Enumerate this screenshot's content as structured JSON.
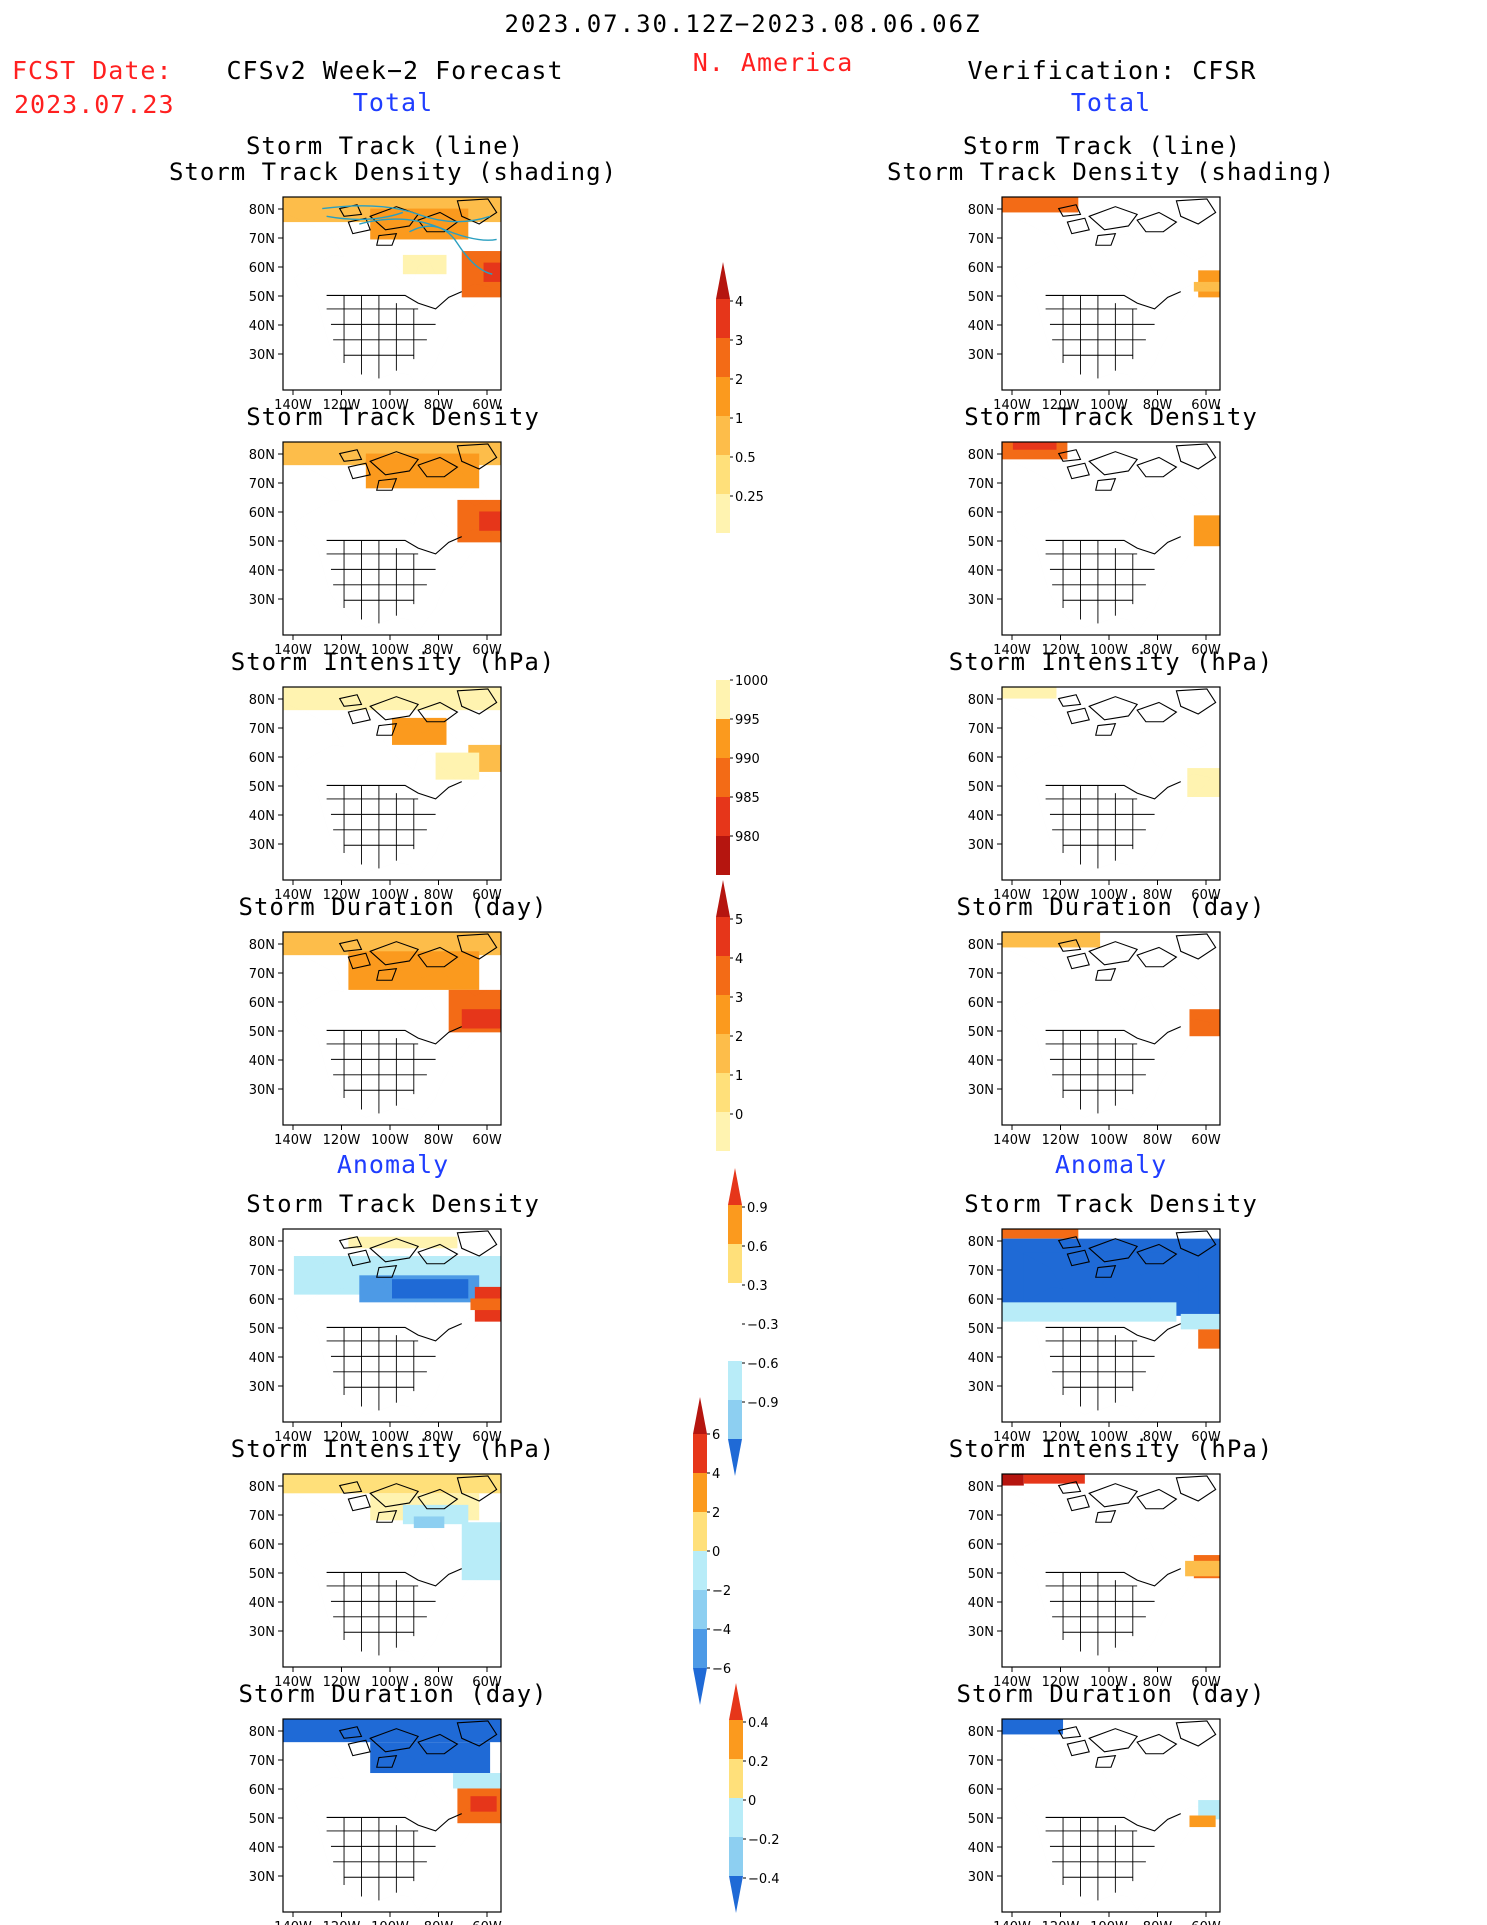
{
  "header": {
    "valid_period": "2023.07.30.12Z−2023.08.06.06Z",
    "region": "N. America",
    "fcst_label": "FCST Date:",
    "fcst_date": "2023.07.23",
    "left_title": "CFSv2 Week−2 Forecast",
    "right_title": "Verification: CFSR",
    "total_label": "Total",
    "anomaly_label": "Anomaly"
  },
  "panel_titles": {
    "track_line": "Storm Track (line)",
    "track_shading": "Storm Track Density (shading)",
    "density": "Storm Track Density",
    "intensity": "Storm Intensity (hPa)",
    "duration": "Storm Duration (day)"
  },
  "map_axes": {
    "lat_labels": [
      "80N",
      "70N",
      "60N",
      "50N",
      "40N",
      "30N"
    ],
    "lon_labels": [
      "140W",
      "120W",
      "100W",
      "80W",
      "60W"
    ]
  },
  "colorbars": {
    "density_total": [
      "4",
      "3",
      "2",
      "1",
      "0.5",
      "0.25"
    ],
    "intensity_total": [
      "1000",
      "995",
      "990",
      "985",
      "980"
    ],
    "duration_total": [
      "5",
      "4",
      "3",
      "2",
      "1",
      "0"
    ],
    "density_anom": [
      "0.9",
      "0.6",
      "0.3",
      "−0.3",
      "−0.6",
      "−0.9"
    ],
    "intensity_anom": [
      "6",
      "4",
      "2",
      "0",
      "−2",
      "−4",
      "−6"
    ],
    "duration_anom": [
      "0.4",
      "0.2",
      "0",
      "−0.2",
      "−0.4"
    ]
  },
  "colors": {
    "header_red": "#ff2020",
    "label_blue": "#1f3dff",
    "pale_yellow": "#fff3b0",
    "light_yellow": "#ffe07a",
    "light_orange": "#fdbd4a",
    "orange": "#fb9a1e",
    "dark_orange": "#f36b16",
    "red": "#e6361a",
    "dark_red": "#b5150f",
    "pale_blue": "#b8ecf8",
    "light_blue": "#8dcff1",
    "mid_blue": "#4d9ae6",
    "deep_blue": "#1f6ad6",
    "track_line": "#2a9fc0"
  }
}
